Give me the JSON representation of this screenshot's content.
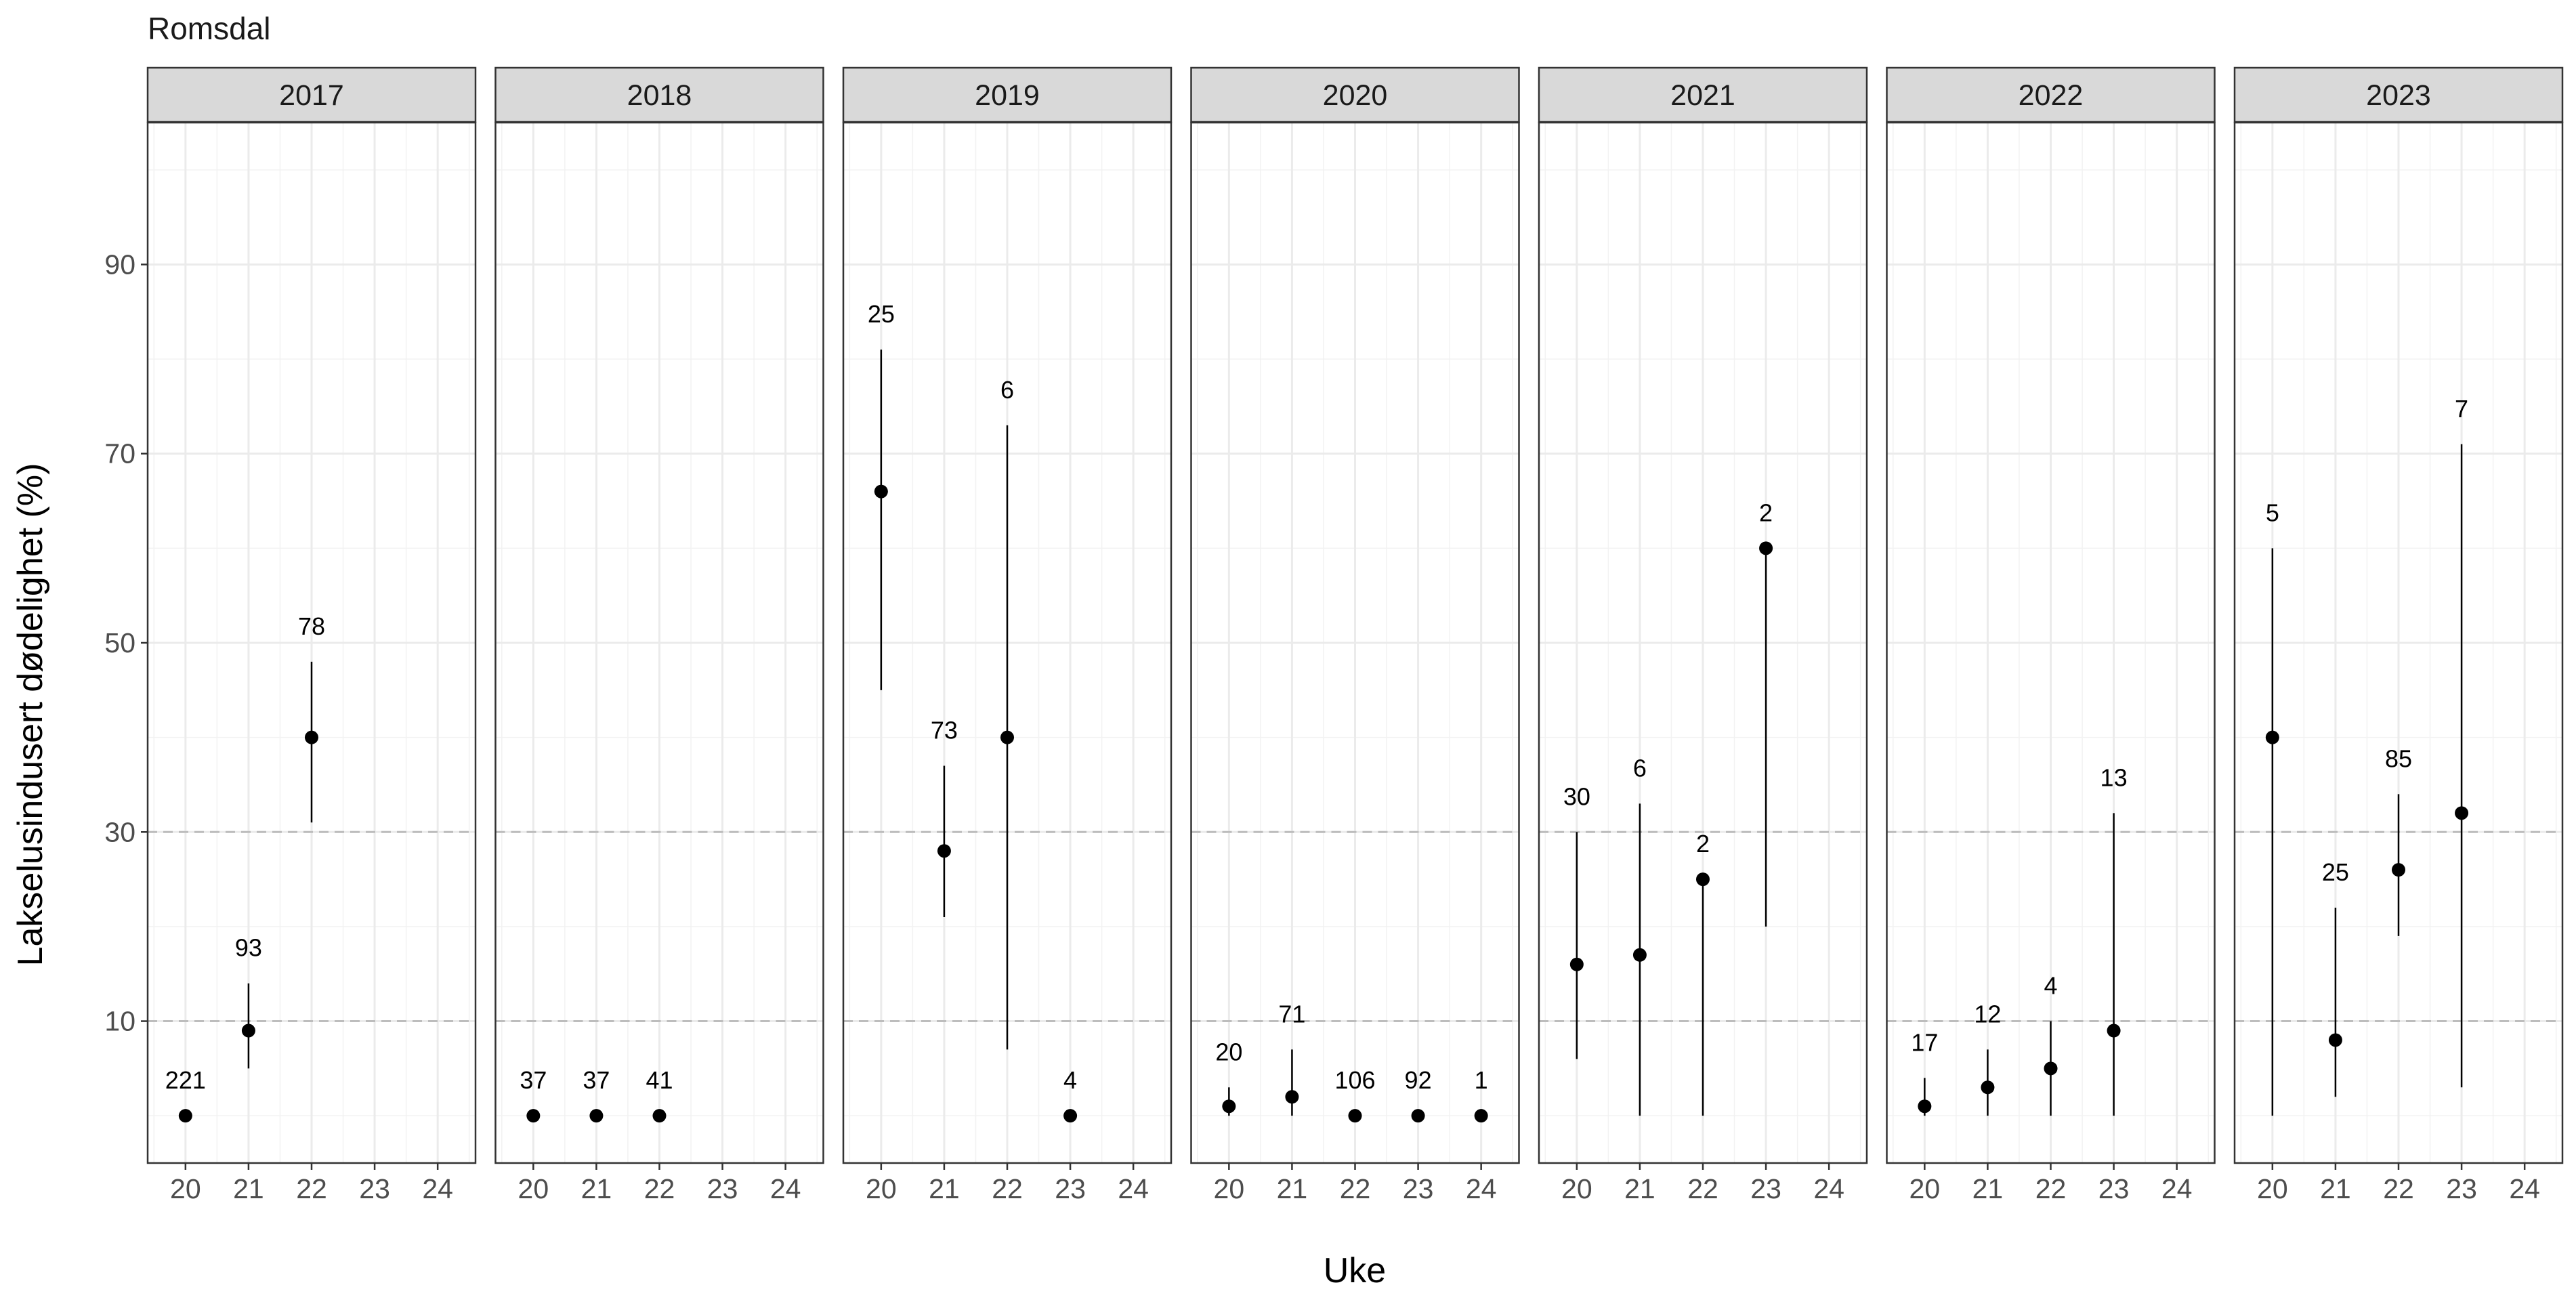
{
  "chart_data": {
    "type": "scatter",
    "title": "Romsdal",
    "xlabel": "Uke",
    "ylabel": "Lakselusindusert dødelighet (%)",
    "ylim": [
      -5,
      105
    ],
    "xlim": [
      19.4,
      24.6
    ],
    "x_ticks": [
      20,
      21,
      22,
      23,
      24
    ],
    "y_ticks": [
      10,
      30,
      50,
      70,
      90
    ],
    "reference_lines": [
      10,
      30
    ],
    "grid": true,
    "colors": {
      "point": "#000000",
      "strip_fill": "#d9d9d9",
      "grid_major": "#ebebeb",
      "reference_line": "#bdbdbd"
    },
    "facets": [
      {
        "label": "2017",
        "points": [
          {
            "x": 20,
            "y": 0,
            "lo": 0,
            "hi": 0,
            "n": "221"
          },
          {
            "x": 21,
            "y": 9,
            "lo": 5,
            "hi": 14,
            "n": "93"
          },
          {
            "x": 22,
            "y": 40,
            "lo": 31,
            "hi": 48,
            "n": "78"
          }
        ]
      },
      {
        "label": "2018",
        "points": [
          {
            "x": 20,
            "y": 0,
            "lo": 0,
            "hi": 0,
            "n": "37"
          },
          {
            "x": 21,
            "y": 0,
            "lo": 0,
            "hi": 0,
            "n": "37"
          },
          {
            "x": 22,
            "y": 0,
            "lo": 0,
            "hi": 0,
            "n": "41"
          }
        ]
      },
      {
        "label": "2019",
        "points": [
          {
            "x": 20,
            "y": 66,
            "lo": 45,
            "hi": 81,
            "n": "25"
          },
          {
            "x": 21,
            "y": 28,
            "lo": 21,
            "hi": 37,
            "n": "73"
          },
          {
            "x": 22,
            "y": 40,
            "lo": 7,
            "hi": 73,
            "n": "6"
          },
          {
            "x": 23,
            "y": 0,
            "lo": 0,
            "hi": 0,
            "n": "4"
          }
        ]
      },
      {
        "label": "2020",
        "points": [
          {
            "x": 20,
            "y": 1,
            "lo": 0,
            "hi": 3,
            "n": "20"
          },
          {
            "x": 21,
            "y": 2,
            "lo": 0,
            "hi": 7,
            "n": "71"
          },
          {
            "x": 22,
            "y": 0,
            "lo": 0,
            "hi": 0,
            "n": "106"
          },
          {
            "x": 23,
            "y": 0,
            "lo": 0,
            "hi": 0,
            "n": "92"
          },
          {
            "x": 24,
            "y": 0,
            "lo": 0,
            "hi": 0,
            "n": "1"
          }
        ]
      },
      {
        "label": "2021",
        "points": [
          {
            "x": 20,
            "y": 16,
            "lo": 6,
            "hi": 30,
            "n": "30"
          },
          {
            "x": 21,
            "y": 17,
            "lo": 0,
            "hi": 33,
            "n": "6"
          },
          {
            "x": 22,
            "y": 25,
            "lo": 0,
            "hi": 25,
            "n": "2"
          },
          {
            "x": 23,
            "y": 60,
            "lo": 20,
            "hi": 60,
            "n": "2"
          }
        ]
      },
      {
        "label": "2022",
        "points": [
          {
            "x": 20,
            "y": 1,
            "lo": 0,
            "hi": 4,
            "n": "17"
          },
          {
            "x": 21,
            "y": 3,
            "lo": 0,
            "hi": 7,
            "n": "12"
          },
          {
            "x": 22,
            "y": 5,
            "lo": 0,
            "hi": 10,
            "n": "4"
          },
          {
            "x": 23,
            "y": 9,
            "lo": 0,
            "hi": 32,
            "n": "13"
          }
        ]
      },
      {
        "label": "2023",
        "points": [
          {
            "x": 20,
            "y": 40,
            "lo": 0,
            "hi": 60,
            "n": "5"
          },
          {
            "x": 21,
            "y": 8,
            "lo": 2,
            "hi": 22,
            "n": "25"
          },
          {
            "x": 22,
            "y": 26,
            "lo": 19,
            "hi": 34,
            "n": "85"
          },
          {
            "x": 23,
            "y": 32,
            "lo": 3,
            "hi": 71,
            "n": "7"
          }
        ]
      }
    ]
  }
}
